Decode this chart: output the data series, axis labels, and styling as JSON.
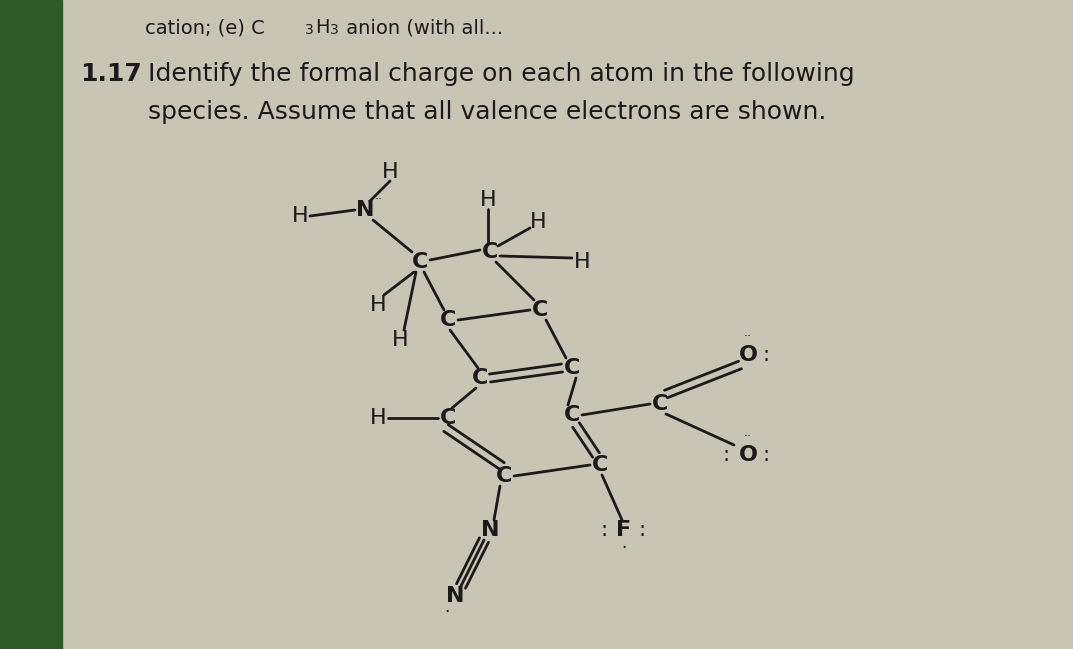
{
  "bg_color": "#c9c5b5",
  "left_bar_color": "#2d5a27",
  "text_color": "#1a1a1a",
  "fig_width": 10.73,
  "fig_height": 6.49,
  "top_line": "cation; (e) C₃H₃ anion (with all...",
  "problem_num": "1.17",
  "line1": "Identify the formal charge on each atom in the following",
  "line2": "species. Assume that all valence electrons are shown."
}
